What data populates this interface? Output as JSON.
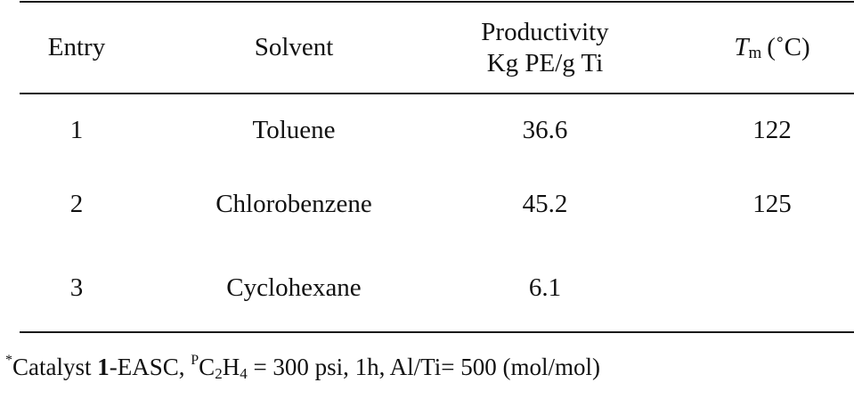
{
  "table": {
    "headers": {
      "entry": "Entry",
      "solvent": "Solvent",
      "productivity_line1": "Productivity",
      "productivity_line2": "Kg PE/g Ti",
      "tm_symbol": "T",
      "tm_subscript": "m",
      "tm_unit": "(˚C)"
    },
    "rows": [
      {
        "entry": "1",
        "solvent": "Toluene",
        "productivity": "36.6",
        "tm": "122"
      },
      {
        "entry": "2",
        "solvent": "Chlorobenzene",
        "productivity": "45.2",
        "tm": "125"
      },
      {
        "entry": "3",
        "solvent": "Cyclohexane",
        "productivity": "6.1",
        "tm": ""
      }
    ]
  },
  "footnote": {
    "marker": "*",
    "text_catalyst": "Catalyst ",
    "bold_number": "1",
    "text_easc": "-EASC, ",
    "pressure_marker": "P",
    "formula_c": "C",
    "formula_c_sub": "2",
    "formula_h": "H",
    "formula_h_sub": "4",
    "conditions": " = 300 psi, 1h, Al/Ti= 500 (mol/mol)"
  }
}
